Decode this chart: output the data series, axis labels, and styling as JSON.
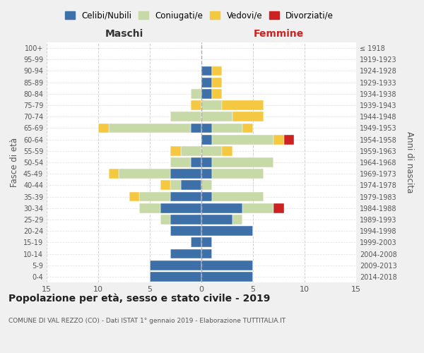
{
  "age_groups": [
    "0-4",
    "5-9",
    "10-14",
    "15-19",
    "20-24",
    "25-29",
    "30-34",
    "35-39",
    "40-44",
    "45-49",
    "50-54",
    "55-59",
    "60-64",
    "65-69",
    "70-74",
    "75-79",
    "80-84",
    "85-89",
    "90-94",
    "95-99",
    "100+"
  ],
  "birth_years": [
    "2014-2018",
    "2009-2013",
    "2004-2008",
    "1999-2003",
    "1994-1998",
    "1989-1993",
    "1984-1988",
    "1979-1983",
    "1974-1978",
    "1969-1973",
    "1964-1968",
    "1959-1963",
    "1954-1958",
    "1949-1953",
    "1944-1948",
    "1939-1943",
    "1934-1938",
    "1929-1933",
    "1924-1928",
    "1919-1923",
    "≤ 1918"
  ],
  "male": {
    "celibi": [
      5,
      5,
      3,
      1,
      3,
      3,
      4,
      3,
      2,
      3,
      1,
      0,
      0,
      1,
      0,
      0,
      0,
      0,
      0,
      0,
      0
    ],
    "coniugati": [
      0,
      0,
      0,
      0,
      0,
      1,
      2,
      3,
      1,
      5,
      2,
      2,
      0,
      8,
      3,
      0,
      1,
      0,
      0,
      0,
      0
    ],
    "vedovi": [
      0,
      0,
      0,
      0,
      0,
      0,
      0,
      1,
      1,
      1,
      0,
      1,
      0,
      1,
      0,
      1,
      0,
      0,
      0,
      0,
      0
    ],
    "divorziati": [
      0,
      0,
      0,
      0,
      0,
      0,
      0,
      0,
      0,
      0,
      0,
      0,
      0,
      0,
      0,
      0,
      0,
      0,
      0,
      0,
      0
    ]
  },
  "female": {
    "celibi": [
      5,
      5,
      1,
      1,
      5,
      3,
      4,
      1,
      0,
      1,
      1,
      0,
      1,
      1,
      0,
      0,
      1,
      1,
      1,
      0,
      0
    ],
    "coniugati": [
      0,
      0,
      0,
      0,
      0,
      1,
      3,
      5,
      1,
      5,
      6,
      2,
      6,
      3,
      3,
      2,
      0,
      0,
      0,
      0,
      0
    ],
    "vedovi": [
      0,
      0,
      0,
      0,
      0,
      0,
      0,
      0,
      0,
      0,
      0,
      1,
      1,
      1,
      3,
      4,
      1,
      1,
      1,
      0,
      0
    ],
    "divorziati": [
      0,
      0,
      0,
      0,
      0,
      0,
      1,
      0,
      0,
      0,
      0,
      0,
      1,
      0,
      0,
      0,
      0,
      0,
      0,
      0,
      0
    ]
  },
  "colors": {
    "celibi": "#3d6fa8",
    "coniugati": "#c8d9a8",
    "vedovi": "#f5c842",
    "divorziati": "#cc2222"
  },
  "title": "Popolazione per età, sesso e stato civile - 2019",
  "subtitle": "COMUNE DI VAL REZZO (CO) - Dati ISTAT 1° gennaio 2019 - Elaborazione TUTTITALIA.IT",
  "xlabel_left": "Maschi",
  "xlabel_right": "Femmine",
  "ylabel_left": "Fasce di età",
  "ylabel_right": "Anni di nascita",
  "xlim": 15,
  "legend_labels": [
    "Celibi/Nubili",
    "Coniugati/e",
    "Vedovi/e",
    "Divorziati/e"
  ],
  "bg_color": "#f0f0f0",
  "plot_bg": "#ffffff",
  "grid_color": "#cccccc"
}
